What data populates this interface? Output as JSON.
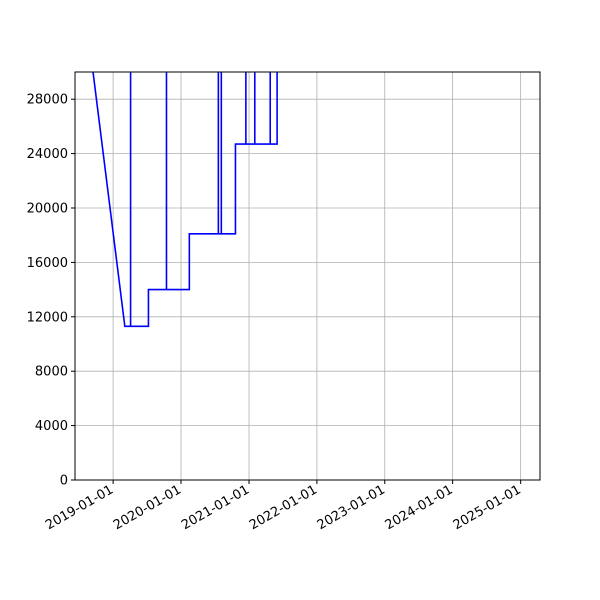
{
  "chart_data": {
    "type": "line",
    "title": "",
    "xlabel": "",
    "ylabel": "",
    "x_scale": "date",
    "xlim": [
      "2018-06-10",
      "2025-04-15"
    ],
    "ylim": [
      0,
      30000
    ],
    "grid": true,
    "legend": "none",
    "x_ticks": [
      "2019-01-01",
      "2020-01-01",
      "2021-01-01",
      "2022-01-01",
      "2023-01-01",
      "2024-01-01",
      "2025-01-01"
    ],
    "x_tick_labels": [
      "2019-01-01",
      "2020-01-01",
      "2021-01-01",
      "2022-01-01",
      "2023-01-01",
      "2024-01-01",
      "2025-01-01"
    ],
    "y_ticks": [
      0,
      4000,
      8000,
      12000,
      16000,
      20000,
      24000,
      28000
    ],
    "y_tick_labels": [
      "0",
      "4000",
      "8000",
      "12000",
      "16000",
      "20000",
      "24000",
      "28000"
    ],
    "colors": {
      "line": "#0000ff",
      "grid": "#b0b0b0",
      "axes": "#000000"
    },
    "series": [
      {
        "points": [
          [
            "2018-09-15",
            30000
          ],
          [
            "2019-03-05",
            11300
          ],
          [
            "2019-04-05",
            11300
          ],
          [
            "2019-04-05",
            30000
          ],
          [
            "2019-04-05",
            11300
          ],
          [
            "2019-07-10",
            11300
          ],
          [
            "2019-07-10",
            14000
          ],
          [
            "2019-10-15",
            14000
          ],
          [
            "2019-10-15",
            30000
          ],
          [
            "2019-10-15",
            14000
          ],
          [
            "2020-02-15",
            14000
          ],
          [
            "2020-02-15",
            18100
          ],
          [
            "2020-07-20",
            18100
          ],
          [
            "2020-07-20",
            30000
          ],
          [
            "2020-07-20",
            18100
          ],
          [
            "2020-08-05",
            18100
          ],
          [
            "2020-08-05",
            30000
          ],
          [
            "2020-08-05",
            18100
          ],
          [
            "2020-10-20",
            18100
          ],
          [
            "2020-10-20",
            24700
          ],
          [
            "2020-12-15",
            24700
          ],
          [
            "2020-12-15",
            30000
          ],
          [
            "2020-12-15",
            24700
          ],
          [
            "2021-02-01",
            24700
          ],
          [
            "2021-02-01",
            30000
          ],
          [
            "2021-02-01",
            24700
          ],
          [
            "2021-04-25",
            24700
          ],
          [
            "2021-04-25",
            30000
          ],
          [
            "2021-04-25",
            24700
          ],
          [
            "2021-06-01",
            24700
          ],
          [
            "2021-06-01",
            30000
          ]
        ]
      }
    ]
  }
}
